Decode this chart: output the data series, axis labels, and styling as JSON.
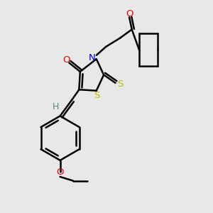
{
  "bg_color": "#e8e8e8",
  "atom_colors": {
    "C": "#000000",
    "H": "#4a9090",
    "N": "#0000ee",
    "O": "#ee0000",
    "S": "#bbbb00"
  },
  "line_color": "#000000",
  "line_width": 1.8
}
